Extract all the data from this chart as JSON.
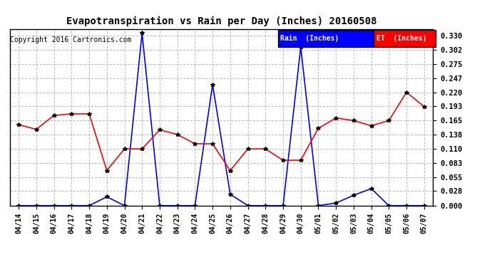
{
  "title": "Evapotranspiration vs Rain per Day (Inches) 20160508",
  "copyright": "Copyright 2016 Cartronics.com",
  "x_labels": [
    "04/14",
    "04/15",
    "04/16",
    "04/17",
    "04/18",
    "04/19",
    "04/20",
    "04/21",
    "04/22",
    "04/23",
    "04/24",
    "04/25",
    "04/26",
    "04/27",
    "04/28",
    "04/29",
    "04/30",
    "05/01",
    "05/02",
    "05/03",
    "05/04",
    "05/05",
    "05/06",
    "05/07"
  ],
  "rain_values": [
    0.0,
    0.0,
    0.0,
    0.0,
    0.0,
    0.017,
    0.0,
    0.335,
    0.0,
    0.0,
    0.0,
    0.235,
    0.022,
    0.0,
    0.0,
    0.0,
    0.308,
    0.0,
    0.005,
    0.02,
    0.033,
    0.0,
    0.0,
    0.0
  ],
  "et_values": [
    0.157,
    0.148,
    0.175,
    0.178,
    0.178,
    0.068,
    0.11,
    0.11,
    0.147,
    0.138,
    0.12,
    0.12,
    0.068,
    0.11,
    0.11,
    0.088,
    0.088,
    0.15,
    0.17,
    0.165,
    0.155,
    0.165,
    0.22,
    0.192
  ],
  "rain_color": "#0000FF",
  "et_color": "#FF0000",
  "background_color": "#FFFFFF",
  "grid_color": "#C0C0C0",
  "y_ticks": [
    0.0,
    0.028,
    0.055,
    0.083,
    0.11,
    0.138,
    0.165,
    0.193,
    0.22,
    0.247,
    0.275,
    0.302,
    0.33
  ],
  "ylim": [
    0.0,
    0.342
  ],
  "legend_rain_bg": "#0000FF",
  "legend_et_bg": "#FF0000",
  "legend_rain_text": "Rain  (Inches)",
  "legend_et_text": "ET  (Inches)"
}
